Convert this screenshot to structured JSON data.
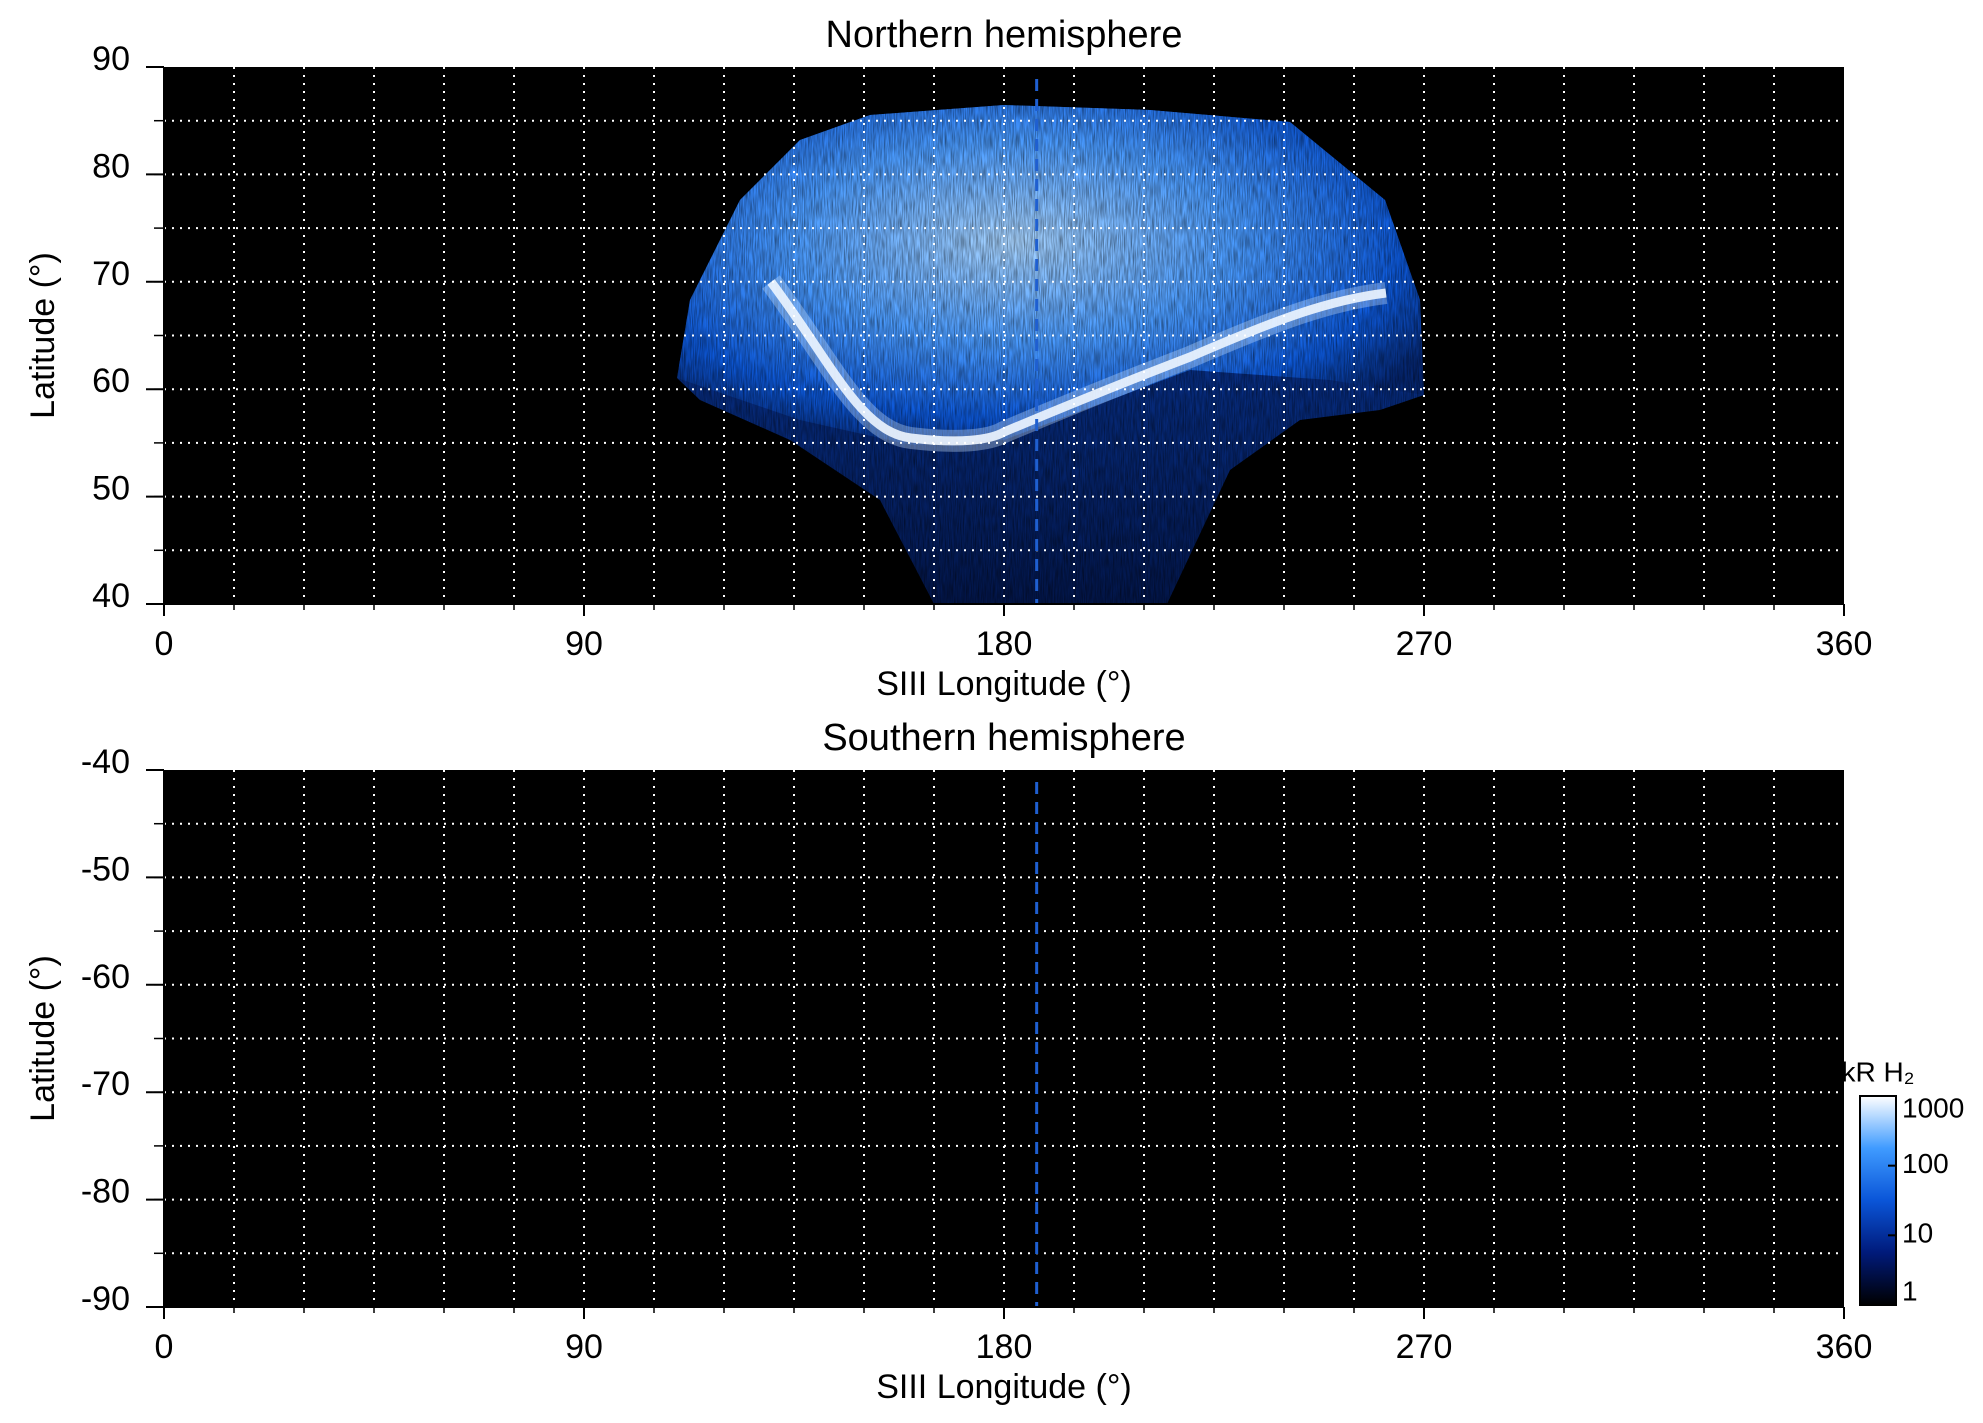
{
  "chart_data": [
    {
      "type": "heatmap",
      "title": "Northern hemisphere",
      "xlabel": "SIII Longitude (°)",
      "ylabel": "Latitude (°)",
      "xlim": [
        0,
        360
      ],
      "xticks": [
        0,
        90,
        180,
        270,
        360
      ],
      "xgrid": [
        15,
        30,
        45,
        60,
        75,
        90,
        105,
        120,
        135,
        150,
        165,
        180,
        195,
        210,
        225,
        240,
        255,
        270,
        285,
        300,
        315,
        330,
        345
      ],
      "ylim": [
        40,
        90
      ],
      "yticks": [
        40,
        50,
        60,
        70,
        80,
        90
      ],
      "ygrid": [
        45,
        50,
        55,
        60,
        65,
        70,
        75,
        80,
        85
      ],
      "vline": 187,
      "background": "#000000",
      "grid_color": "#ffffff",
      "vline_color": "#1f5fd0"
    },
    {
      "type": "heatmap",
      "title": "Southern hemisphere",
      "xlabel": "SIII Longitude (°)",
      "ylabel": "Latitude (°)",
      "xlim": [
        0,
        360
      ],
      "xticks": [
        0,
        90,
        180,
        270,
        360
      ],
      "xgrid": [
        15,
        30,
        45,
        60,
        75,
        90,
        105,
        120,
        135,
        150,
        165,
        180,
        195,
        210,
        225,
        240,
        255,
        270,
        285,
        300,
        315,
        330,
        345
      ],
      "ylim": [
        -90,
        -40
      ],
      "yticks": [
        -40,
        -50,
        -60,
        -70,
        -80,
        -90
      ],
      "ygrid": [
        -45,
        -50,
        -55,
        -60,
        -65,
        -70,
        -75,
        -80,
        -85
      ],
      "vline": 187,
      "background": "#000000",
      "grid_color": "#ffffff",
      "vline_color": "#1f5fd0",
      "colorbar": {
        "label": "kR H₂",
        "scale": "log",
        "lim": [
          1,
          1000
        ],
        "ticks": [
          1,
          10,
          100,
          1000
        ],
        "colors": [
          "#000000",
          "#001a7a",
          "#0a55d8",
          "#3f9bff",
          "#ffffff"
        ]
      }
    }
  ]
}
